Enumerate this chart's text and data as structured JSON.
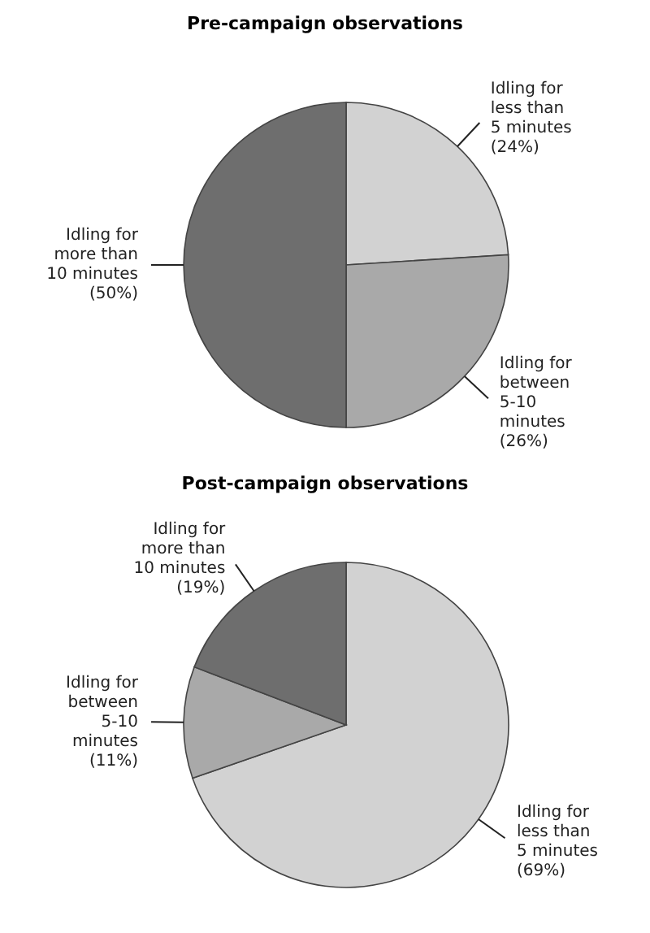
{
  "chart_data": [
    {
      "type": "pie",
      "title": "Pre-campaign observations",
      "categories": [
        "Idling for less than 5 minutes",
        "Idling for between 5-10 minutes",
        "Idling for more than 10 minutes"
      ],
      "values": [
        24,
        26,
        50
      ],
      "colors": [
        "#d2d2d2",
        "#a9a9a9",
        "#6e6e6e"
      ],
      "value_labels": [
        "(24%)",
        "(26%)",
        "(50%)"
      ],
      "legend": false
    },
    {
      "type": "pie",
      "title": "Post-campaign observations",
      "categories": [
        "Idling for less than 5 minutes",
        "Idling for between 5-10 minutes",
        "Idling for more than 10 minutes"
      ],
      "values": [
        69,
        11,
        19
      ],
      "colors": [
        "#d2d2d2",
        "#a9a9a9",
        "#6e6e6e"
      ],
      "value_labels": [
        "(69%)",
        "(11%)",
        "(19%)"
      ],
      "legend": false
    }
  ]
}
